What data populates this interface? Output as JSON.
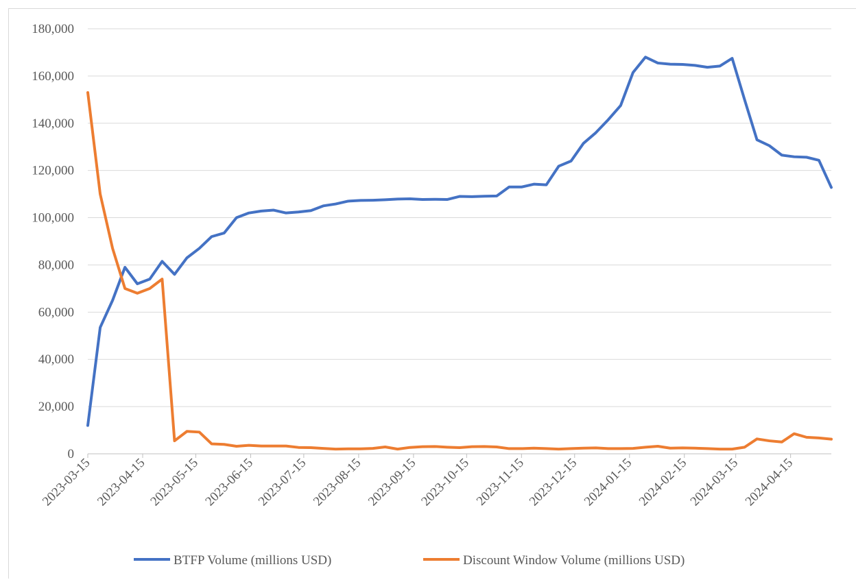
{
  "chart_data": {
    "type": "line",
    "x": [
      "2023-03-15",
      "2023-03-22",
      "2023-03-29",
      "2023-04-05",
      "2023-04-12",
      "2023-04-19",
      "2023-04-26",
      "2023-05-03",
      "2023-05-10",
      "2023-05-17",
      "2023-05-24",
      "2023-05-31",
      "2023-06-07",
      "2023-06-14",
      "2023-06-21",
      "2023-06-28",
      "2023-07-05",
      "2023-07-12",
      "2023-07-19",
      "2023-07-26",
      "2023-08-02",
      "2023-08-09",
      "2023-08-16",
      "2023-08-23",
      "2023-08-30",
      "2023-09-06",
      "2023-09-13",
      "2023-09-20",
      "2023-09-27",
      "2023-10-04",
      "2023-10-11",
      "2023-10-18",
      "2023-10-25",
      "2023-11-01",
      "2023-11-08",
      "2023-11-15",
      "2023-11-22",
      "2023-11-29",
      "2023-12-06",
      "2023-12-13",
      "2023-12-20",
      "2023-12-27",
      "2024-01-03",
      "2024-01-10",
      "2024-01-17",
      "2024-01-24",
      "2024-01-31",
      "2024-02-07",
      "2024-02-14",
      "2024-02-21",
      "2024-02-28",
      "2024-03-06",
      "2024-03-13",
      "2024-03-20",
      "2024-03-27",
      "2024-04-03",
      "2024-04-10",
      "2024-04-17",
      "2024-04-24",
      "2024-05-01",
      "2024-05-08"
    ],
    "series": [
      {
        "name": "BTFP Volume (millions USD)",
        "color": "#4472c4",
        "values": [
          12000,
          53500,
          65000,
          79000,
          72000,
          74000,
          81500,
          76000,
          83000,
          87000,
          92000,
          93500,
          100000,
          102000,
          102800,
          103200,
          102000,
          102400,
          103000,
          105000,
          105800,
          107000,
          107300,
          107400,
          107600,
          107900,
          108000,
          107700,
          107800,
          107700,
          109000,
          108900,
          109100,
          109200,
          113000,
          113000,
          114200,
          113900,
          121800,
          124000,
          131500,
          136000,
          141500,
          147500,
          161500,
          168000,
          165500,
          165000,
          164900,
          164500,
          163700,
          164200,
          167500,
          150000,
          133000,
          130500,
          126500,
          125800,
          125600,
          124300,
          112800
        ]
      },
      {
        "name": "Discount Window Volume (millions USD)",
        "color": "#ed7d31",
        "values": [
          153000,
          110000,
          87000,
          70000,
          68000,
          70000,
          74000,
          5500,
          9500,
          9200,
          4200,
          4000,
          3200,
          3600,
          3300,
          3300,
          3300,
          2700,
          2600,
          2300,
          2000,
          2100,
          2100,
          2300,
          2900,
          2000,
          2700,
          3000,
          3100,
          2800,
          2600,
          3000,
          3100,
          2900,
          2200,
          2200,
          2400,
          2200,
          2000,
          2200,
          2400,
          2500,
          2200,
          2200,
          2300,
          2800,
          3200,
          2400,
          2500,
          2400,
          2200,
          2000,
          2000,
          2800,
          6300,
          5500,
          5000,
          8500,
          7000,
          6700,
          6200
        ]
      }
    ],
    "xlim": [
      "2023-03-15",
      "2024-05-08"
    ],
    "xticks": [
      "2023-03-15",
      "2023-04-15",
      "2023-05-15",
      "2023-06-15",
      "2023-07-15",
      "2023-08-15",
      "2023-09-15",
      "2023-10-15",
      "2023-11-15",
      "2023-12-15",
      "2024-01-15",
      "2024-02-15",
      "2024-03-15",
      "2024-04-15"
    ],
    "ylim": [
      0,
      180000
    ],
    "yticks": [
      0,
      {
        "value": 20000,
        "label": "20,000"
      },
      {
        "value": 40000,
        "label": "40,000"
      },
      {
        "value": 60000,
        "label": "60,000"
      },
      {
        "value": 80000,
        "label": "80,000"
      },
      {
        "value": 100000,
        "label": "100,000"
      },
      {
        "value": 120000,
        "label": "120,000"
      },
      {
        "value": 140000,
        "label": "140,000"
      },
      {
        "value": 160000,
        "label": "160,000"
      },
      {
        "value": 180000,
        "label": "180,000"
      }
    ],
    "grid": true,
    "legend": "bottom"
  }
}
